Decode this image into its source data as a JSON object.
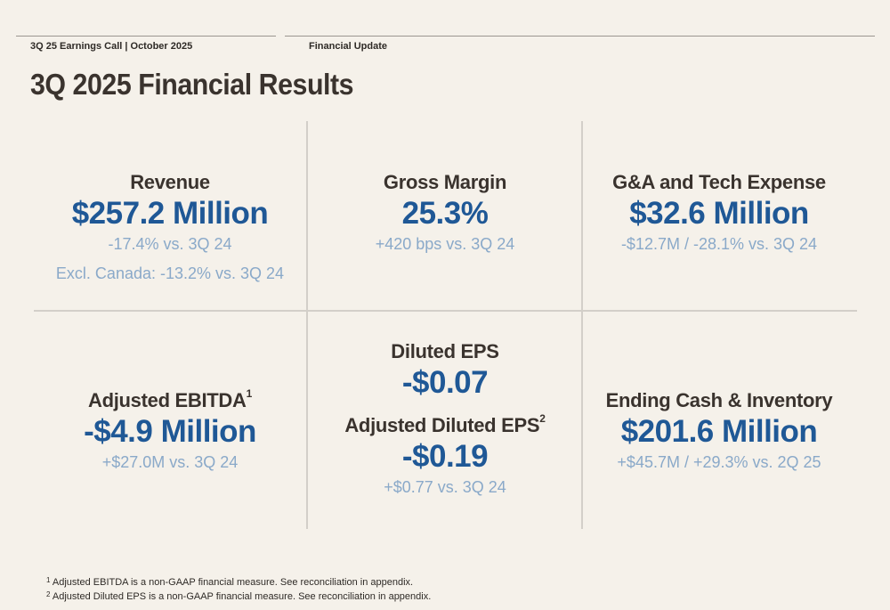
{
  "header": {
    "left": "3Q 25 Earnings Call | October 2025",
    "right": "Financial Update"
  },
  "title": "3Q 2025 Financial Results",
  "metrics": {
    "revenue": {
      "label": "Revenue",
      "value": "$257.2 Million",
      "sub1": "-17.4% vs. 3Q 24",
      "sub2": "Excl. Canada: -13.2% vs. 3Q 24"
    },
    "gross_margin": {
      "label": "Gross Margin",
      "value": "25.3%",
      "sub1": "+420 bps vs. 3Q 24"
    },
    "ga_tech": {
      "label": "G&A and Tech Expense",
      "value": "$32.6 Million",
      "sub1": "-$12.7M / -28.1% vs. 3Q 24"
    },
    "adj_ebitda": {
      "label": "Adjusted EBITDA",
      "sup": "1",
      "value": "-$4.9 Million",
      "sub1": "+$27.0M vs. 3Q 24"
    },
    "diluted_eps": {
      "label": "Diluted EPS",
      "value": "-$0.07"
    },
    "adj_diluted_eps": {
      "label": "Adjusted Diluted EPS",
      "sup": "2",
      "value": "-$0.19",
      "sub1": "+$0.77 vs. 3Q 24"
    },
    "ending_cash": {
      "label": "Ending Cash & Inventory",
      "value": "$201.6 Million",
      "sub1": "+$45.7M / +29.3% vs. 2Q 25"
    }
  },
  "footnotes": [
    {
      "num": "1",
      "text": "Adjusted EBITDA is a non-GAAP financial measure. See reconciliation in appendix."
    },
    {
      "num": "2",
      "text": "Adjusted Diluted EPS is a non-GAAP financial measure. See reconciliation in appendix."
    }
  ]
}
